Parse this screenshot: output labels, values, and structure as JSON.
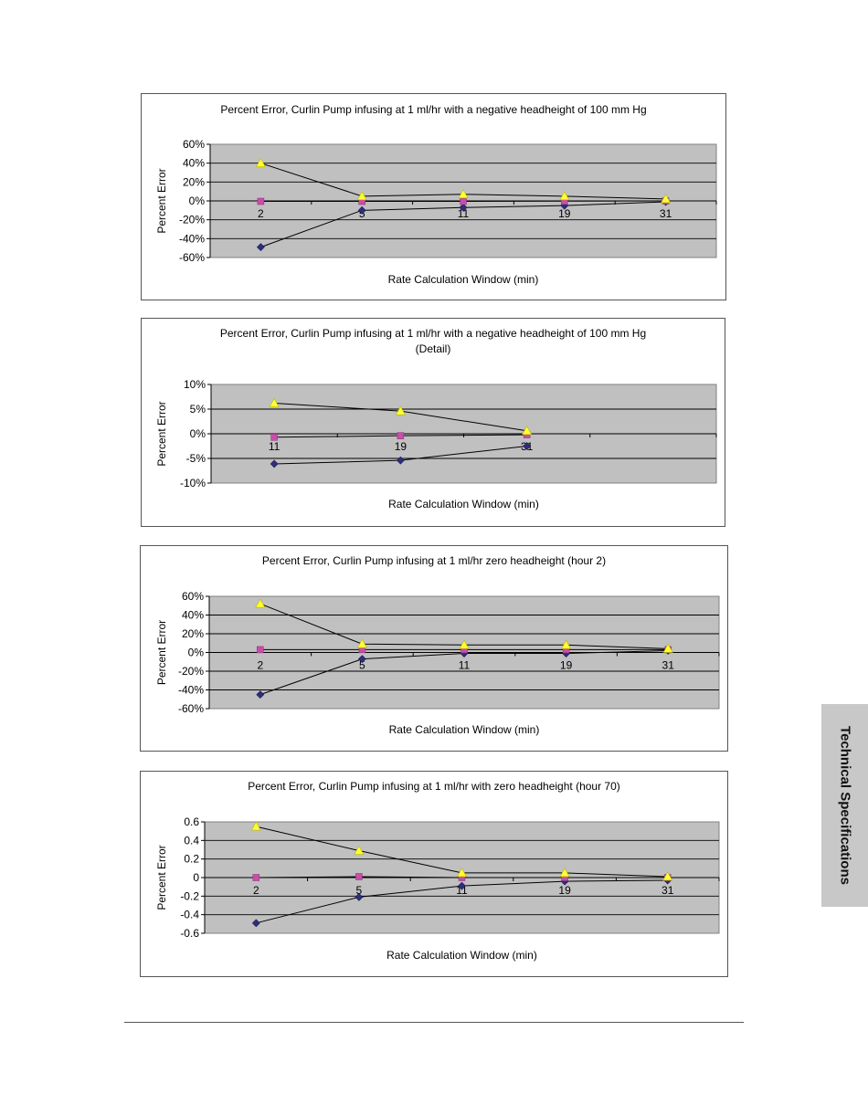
{
  "side_tab": {
    "label": "Technical Specifications"
  },
  "colors": {
    "plot_bg": "#c0c0c0",
    "grid": "#000000",
    "line": "#000000",
    "diamond": "#2e2e7a",
    "square": "#c84fa8",
    "triangle": "#ffff33"
  },
  "chart_data": [
    {
      "type": "line",
      "title": [
        "Percent Error, Curlin Pump infusing at 1 ml/hr  with a negative headheight of 100 mm Hg"
      ],
      "xlabel": "Rate Calculation Window  (min)",
      "ylabel": "Percent Error",
      "categories": [
        "2",
        "5",
        "11",
        "19",
        "31"
      ],
      "ylim": [
        -60,
        60
      ],
      "yticks": [
        60,
        40,
        20,
        0,
        -20,
        -40,
        -60
      ],
      "ytick_labels": [
        "60%",
        "40%",
        "20%",
        "0%",
        "-20%",
        "-40%",
        "-60%"
      ],
      "grid": true,
      "series": [
        {
          "marker": "diamond",
          "values": [
            -49,
            -10,
            -7,
            -5,
            -1
          ]
        },
        {
          "marker": "square",
          "values": [
            -0.5,
            -0.5,
            -0.5,
            -0.3,
            0
          ]
        },
        {
          "marker": "triangle",
          "values": [
            40,
            5,
            7,
            5,
            2
          ]
        }
      ]
    },
    {
      "type": "line",
      "title": [
        "Percent Error, Curlin Pump infusing at 1 ml/hr  with a negative headheight of 100 mm Hg",
        "(Detail)"
      ],
      "xlabel": "Rate Calculation Window  (min)",
      "ylabel": "Percent Error",
      "categories": [
        "11",
        "19",
        "31"
      ],
      "ylim": [
        -10,
        10
      ],
      "yticks": [
        10,
        5,
        0,
        -5,
        -10
      ],
      "ytick_labels": [
        "10%",
        "5%",
        "0%",
        "-5%",
        "-10%"
      ],
      "grid": true,
      "series": [
        {
          "marker": "diamond",
          "values": [
            -6.1,
            -5.4,
            -2.5
          ]
        },
        {
          "marker": "square",
          "values": [
            -0.7,
            -0.4,
            -0.2
          ]
        },
        {
          "marker": "triangle",
          "values": [
            6.2,
            4.6,
            0.6
          ]
        }
      ]
    },
    {
      "type": "line",
      "title": [
        "Percent Error, Curlin Pump infusing at 1 ml/hr zero headheight (hour 2)"
      ],
      "xlabel": "Rate Calculation Window  (min)",
      "ylabel": "Percent Error",
      "categories": [
        "2",
        "5",
        "11",
        "19",
        "31"
      ],
      "ylim": [
        -60,
        60
      ],
      "yticks": [
        60,
        40,
        20,
        0,
        -20,
        -40,
        -60
      ],
      "ytick_labels": [
        "60%",
        "40%",
        "20%",
        "0%",
        "-20%",
        "-40%",
        "-60%"
      ],
      "grid": true,
      "series": [
        {
          "marker": "diamond",
          "values": [
            -45,
            -7,
            -1,
            -1,
            2
          ]
        },
        {
          "marker": "square",
          "values": [
            3,
            3,
            3,
            3,
            3
          ]
        },
        {
          "marker": "triangle",
          "values": [
            52,
            9,
            8,
            8,
            4
          ]
        }
      ]
    },
    {
      "type": "line",
      "title": [
        "Percent Error, Curlin Pump infusing at 1 ml/hr  with zero headheight (hour 70)"
      ],
      "xlabel": "Rate Calculation Window  (min)",
      "ylabel": "Percent Error",
      "categories": [
        "2",
        "5",
        "11",
        "19",
        "31"
      ],
      "ylim": [
        -0.6,
        0.6
      ],
      "yticks": [
        0.6,
        0.4,
        0.2,
        0,
        -0.2,
        -0.4,
        -0.6
      ],
      "ytick_labels": [
        "0.6",
        "0.4",
        "0.2",
        "0",
        "-0.2",
        "-0.4",
        "-0.6"
      ],
      "grid": true,
      "series": [
        {
          "marker": "diamond",
          "values": [
            -0.49,
            -0.21,
            -0.09,
            -0.04,
            -0.03
          ]
        },
        {
          "marker": "square",
          "values": [
            0,
            0.01,
            0,
            0,
            0
          ]
        },
        {
          "marker": "triangle",
          "values": [
            0.55,
            0.29,
            0.05,
            0.05,
            0.01
          ]
        }
      ]
    }
  ]
}
